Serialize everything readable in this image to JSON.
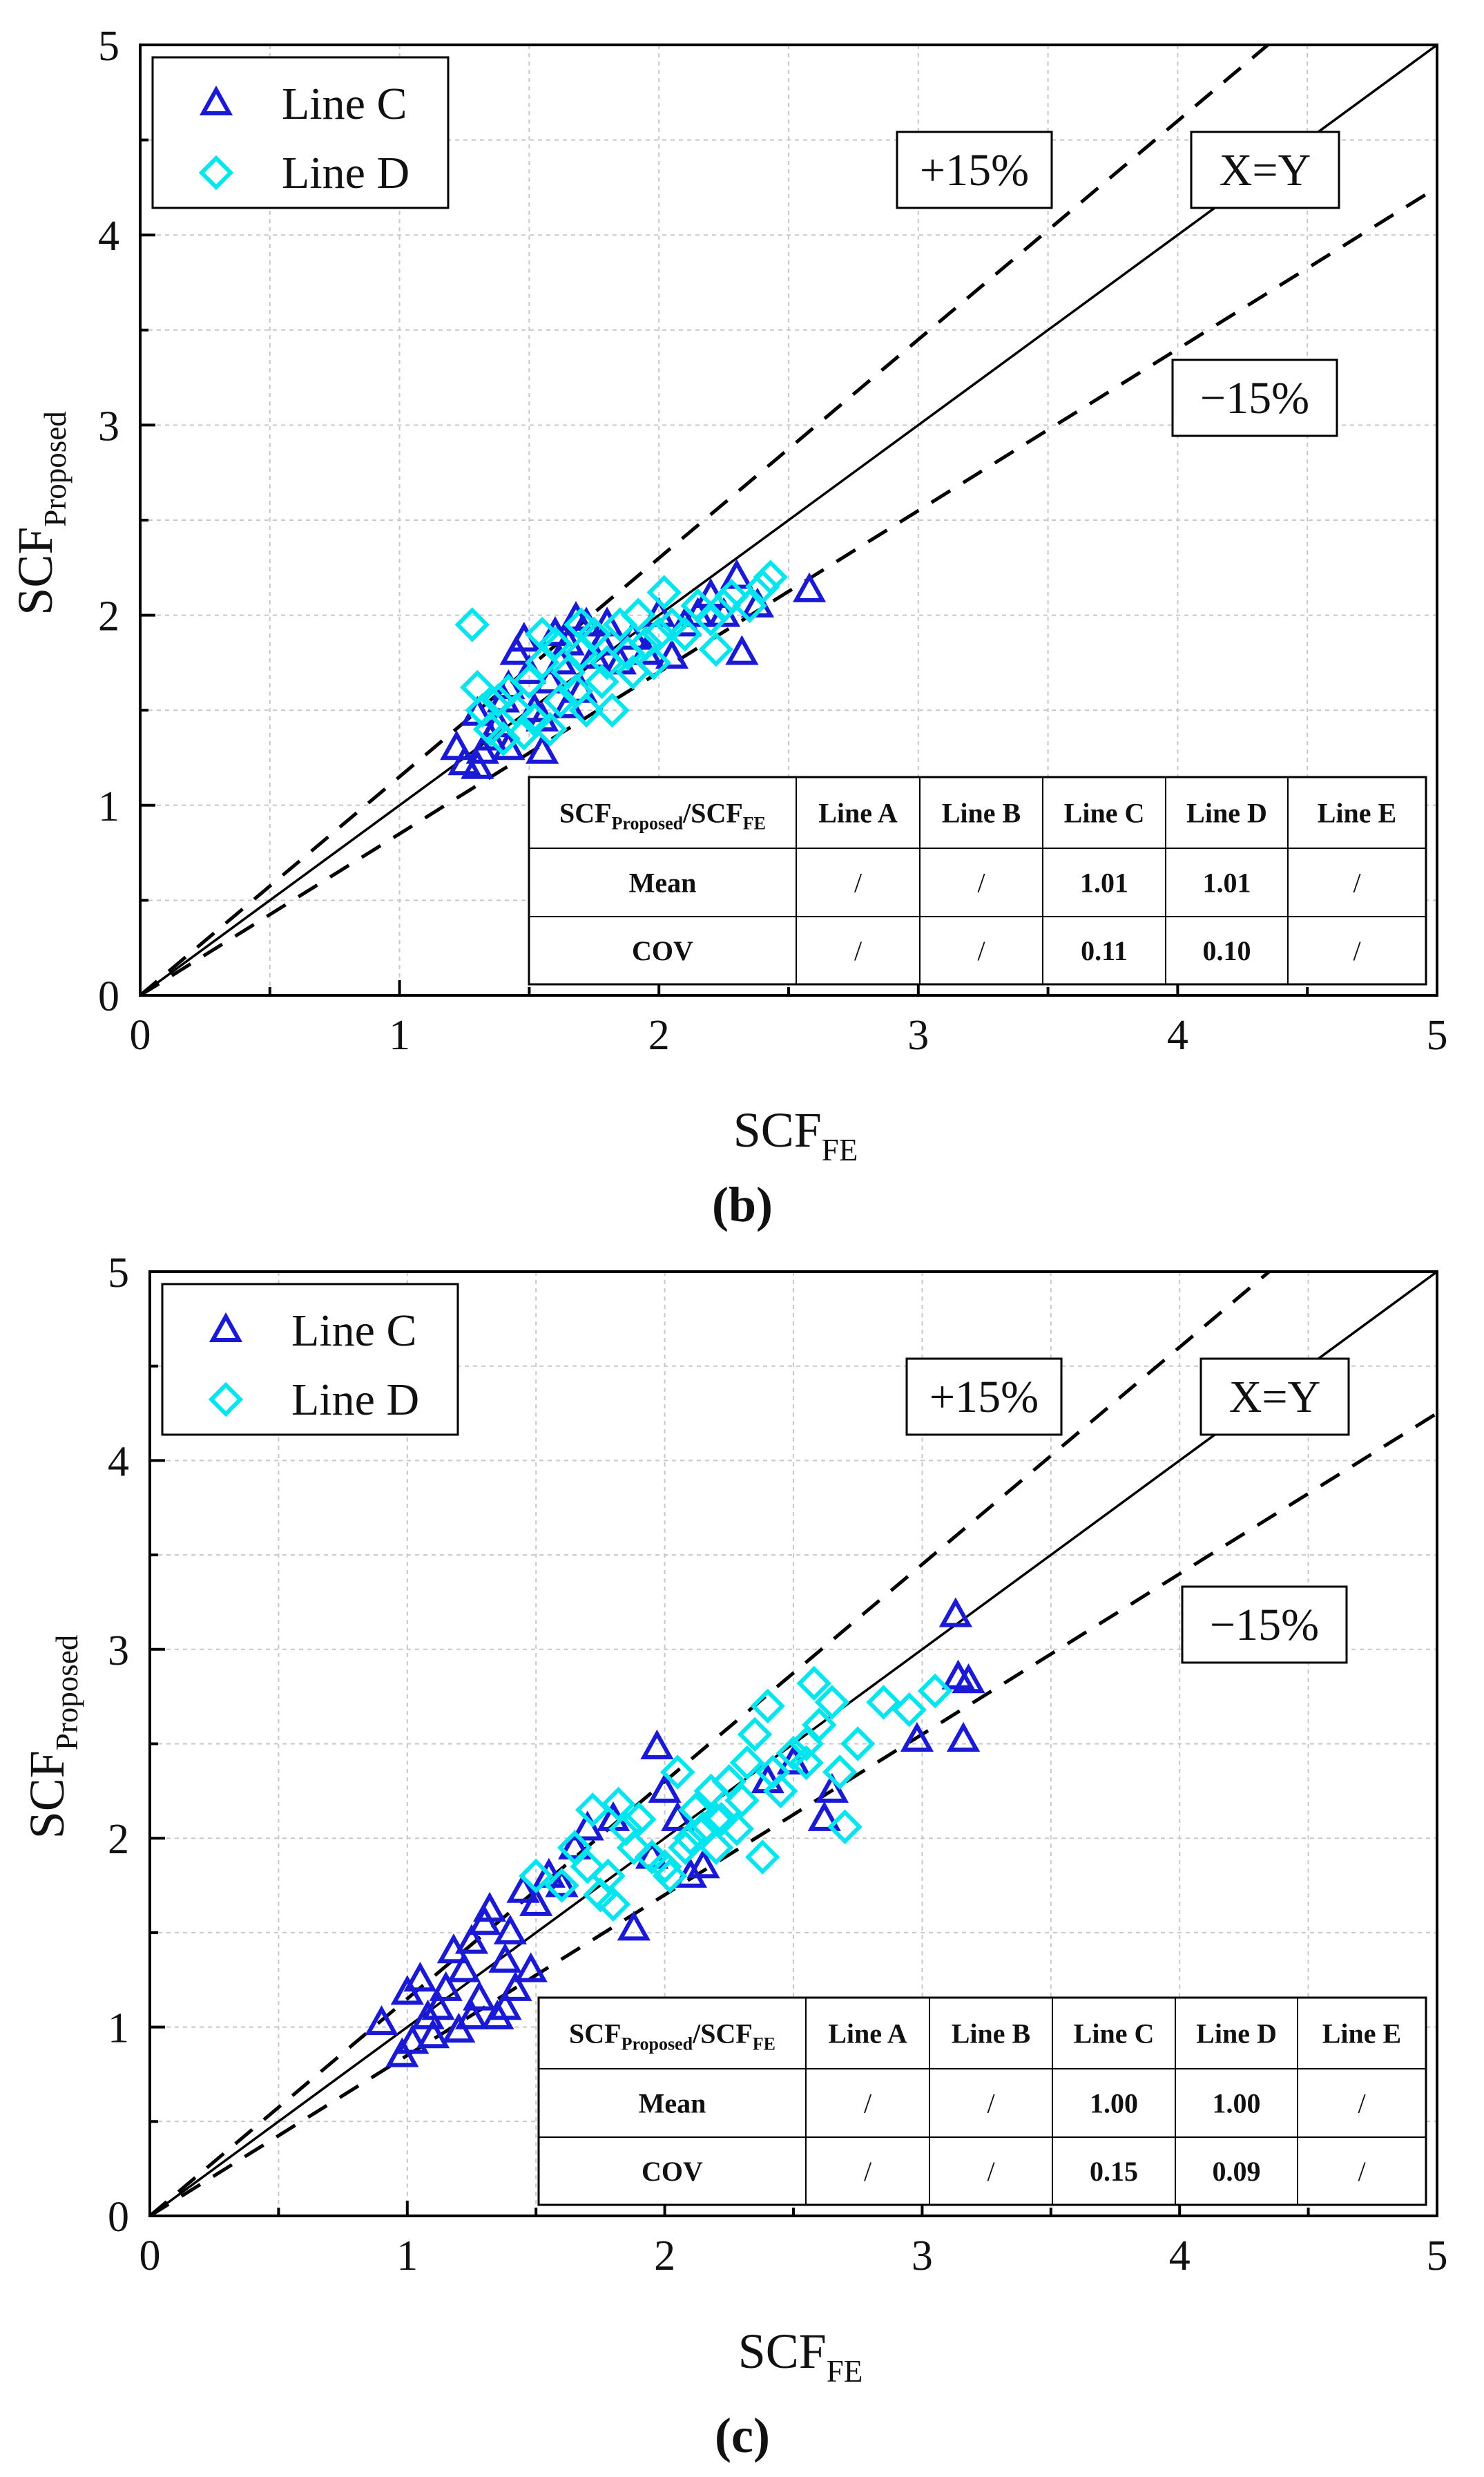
{
  "chart_data": [
    {
      "panel": "b",
      "caption": "(b)",
      "type": "scatter",
      "xlabel": "SCF",
      "xlabel_sub": "FE",
      "ylabel": "SCF",
      "ylabel_sub": "Proposed",
      "xlim": [
        0,
        5
      ],
      "ylim": [
        0,
        5
      ],
      "xticks": [
        "0",
        "1",
        "2",
        "3",
        "4",
        "5"
      ],
      "yticks": [
        "0",
        "1",
        "2",
        "3",
        "4",
        "5"
      ],
      "grid": true,
      "legend": {
        "placement": "top-left",
        "entries": [
          "Line C",
          "Line D"
        ]
      },
      "reference_lines": [
        {
          "label": "X=Y",
          "slope": 1.0,
          "style": "solid"
        },
        {
          "label": "+15%",
          "slope": 1.15,
          "style": "dashed"
        },
        {
          "label": "−15%",
          "slope": 0.85,
          "style": "dashed"
        }
      ],
      "series": [
        {
          "name": "Line C",
          "marker": "triangle",
          "color": "#1a1ad6",
          "points": [
            [
              1.22,
              1.3
            ],
            [
              1.25,
              1.22
            ],
            [
              1.3,
              1.2
            ],
            [
              1.32,
              1.28
            ],
            [
              1.35,
              1.35
            ],
            [
              1.38,
              1.42
            ],
            [
              1.4,
              1.55
            ],
            [
              1.42,
              1.62
            ],
            [
              1.45,
              1.8
            ],
            [
              1.48,
              1.87
            ],
            [
              1.5,
              1.7
            ],
            [
              1.52,
              1.5
            ],
            [
              1.55,
              1.28
            ],
            [
              1.58,
              1.65
            ],
            [
              1.6,
              1.9
            ],
            [
              1.62,
              1.75
            ],
            [
              1.65,
              1.85
            ],
            [
              1.68,
              1.98
            ],
            [
              1.7,
              1.6
            ],
            [
              1.72,
              1.95
            ],
            [
              1.75,
              1.78
            ],
            [
              1.78,
              1.85
            ],
            [
              1.8,
              1.95
            ],
            [
              1.85,
              1.75
            ],
            [
              1.9,
              1.88
            ],
            [
              1.95,
              1.8
            ],
            [
              2.0,
              2.0
            ],
            [
              2.05,
              1.78
            ],
            [
              2.1,
              1.95
            ],
            [
              2.15,
              2.0
            ],
            [
              2.2,
              2.1
            ],
            [
              2.25,
              2.0
            ],
            [
              2.3,
              2.2
            ],
            [
              2.32,
              1.8
            ],
            [
              2.38,
              2.05
            ],
            [
              2.58,
              2.13
            ],
            [
              1.3,
              1.48
            ],
            [
              1.42,
              1.3
            ],
            [
              1.55,
              1.45
            ],
            [
              1.65,
              1.52
            ]
          ]
        },
        {
          "name": "Line D",
          "marker": "diamond",
          "color": "#00e5ee",
          "points": [
            [
              1.28,
              1.95
            ],
            [
              1.3,
              1.62
            ],
            [
              1.32,
              1.5
            ],
            [
              1.35,
              1.4
            ],
            [
              1.38,
              1.55
            ],
            [
              1.4,
              1.35
            ],
            [
              1.42,
              1.6
            ],
            [
              1.45,
              1.5
            ],
            [
              1.48,
              1.38
            ],
            [
              1.5,
              1.65
            ],
            [
              1.52,
              1.45
            ],
            [
              1.55,
              1.75
            ],
            [
              1.58,
              1.4
            ],
            [
              1.6,
              1.85
            ],
            [
              1.62,
              1.55
            ],
            [
              1.65,
              1.7
            ],
            [
              1.68,
              1.6
            ],
            [
              1.7,
              1.8
            ],
            [
              1.72,
              1.5
            ],
            [
              1.75,
              1.9
            ],
            [
              1.78,
              1.65
            ],
            [
              1.8,
              1.75
            ],
            [
              1.82,
              1.5
            ],
            [
              1.85,
              1.95
            ],
            [
              1.88,
              1.8
            ],
            [
              1.9,
              1.7
            ],
            [
              1.92,
              2.0
            ],
            [
              1.95,
              1.85
            ],
            [
              1.98,
              1.75
            ],
            [
              2.0,
              1.9
            ],
            [
              2.02,
              2.12
            ],
            [
              2.05,
              1.95
            ],
            [
              2.1,
              1.9
            ],
            [
              2.15,
              2.05
            ],
            [
              2.2,
              1.98
            ],
            [
              2.22,
              1.82
            ],
            [
              2.25,
              2.05
            ],
            [
              2.28,
              2.1
            ],
            [
              2.35,
              2.05
            ],
            [
              2.4,
              2.15
            ],
            [
              2.43,
              2.2
            ],
            [
              1.7,
              1.95
            ],
            [
              1.55,
              1.9
            ]
          ]
        }
      ],
      "stats_table": {
        "header": [
          "SCF",
          "Proposed",
          "/SCF",
          "FE",
          "Line A",
          "Line B",
          "Line C",
          "Line D",
          "Line E"
        ],
        "rows": [
          [
            "Mean",
            "/",
            "/",
            "1.01",
            "1.01",
            "/"
          ],
          [
            "COV",
            "/",
            "/",
            "0.11",
            "0.10",
            "/"
          ]
        ]
      }
    },
    {
      "panel": "c",
      "caption": "(c)",
      "type": "scatter",
      "xlabel": "SCF",
      "xlabel_sub": "FE",
      "ylabel": "SCF",
      "ylabel_sub": "Proposed",
      "xlim": [
        0,
        5
      ],
      "ylim": [
        0,
        5
      ],
      "xticks": [
        "0",
        "1",
        "2",
        "3",
        "4",
        "5"
      ],
      "yticks": [
        "0",
        "1",
        "2",
        "3",
        "4",
        "5"
      ],
      "grid": true,
      "legend": {
        "placement": "top-left",
        "entries": [
          "Line C",
          "Line D"
        ]
      },
      "reference_lines": [
        {
          "label": "X=Y",
          "slope": 1.0,
          "style": "solid"
        },
        {
          "label": "+15%",
          "slope": 1.15,
          "style": "dashed"
        },
        {
          "label": "−15%",
          "slope": 0.85,
          "style": "dashed"
        }
      ],
      "series": [
        {
          "name": "Line C",
          "marker": "triangle",
          "color": "#1a1ad6",
          "points": [
            [
              0.9,
              1.02
            ],
            [
              0.98,
              0.85
            ],
            [
              1.0,
              1.18
            ],
            [
              1.02,
              0.92
            ],
            [
              1.05,
              1.25
            ],
            [
              1.08,
              1.05
            ],
            [
              1.1,
              0.95
            ],
            [
              1.12,
              1.1
            ],
            [
              1.15,
              1.2
            ],
            [
              1.18,
              1.4
            ],
            [
              1.2,
              0.98
            ],
            [
              1.22,
              1.3
            ],
            [
              1.25,
              1.45
            ],
            [
              1.28,
              1.15
            ],
            [
              1.3,
              1.55
            ],
            [
              1.32,
              1.62
            ],
            [
              1.35,
              1.05
            ],
            [
              1.38,
              1.35
            ],
            [
              1.4,
              1.5
            ],
            [
              1.42,
              1.2
            ],
            [
              1.45,
              1.72
            ],
            [
              1.48,
              1.3
            ],
            [
              1.5,
              1.65
            ],
            [
              1.55,
              1.8
            ],
            [
              1.6,
              1.75
            ],
            [
              1.65,
              1.95
            ],
            [
              1.7,
              2.05
            ],
            [
              1.8,
              2.1
            ],
            [
              1.88,
              1.52
            ],
            [
              1.95,
              1.9
            ],
            [
              1.97,
              2.48
            ],
            [
              2.0,
              2.25
            ],
            [
              2.05,
              2.1
            ],
            [
              2.1,
              1.8
            ],
            [
              2.15,
              1.85
            ],
            [
              2.4,
              2.3
            ],
            [
              2.5,
              2.4
            ],
            [
              2.62,
              2.1
            ],
            [
              2.65,
              2.25
            ],
            [
              2.98,
              2.52
            ],
            [
              3.13,
              3.18
            ],
            [
              3.14,
              2.85
            ],
            [
              3.16,
              2.52
            ],
            [
              3.18,
              2.83
            ],
            [
              1.25,
              1.05
            ],
            [
              1.38,
              1.1
            ]
          ]
        },
        {
          "name": "Line D",
          "marker": "diamond",
          "color": "#00e5ee",
          "points": [
            [
              1.5,
              1.8
            ],
            [
              1.6,
              1.75
            ],
            [
              1.65,
              1.95
            ],
            [
              1.7,
              1.85
            ],
            [
              1.72,
              2.15
            ],
            [
              1.75,
              1.7
            ],
            [
              1.78,
              1.8
            ],
            [
              1.8,
              1.65
            ],
            [
              1.82,
              2.18
            ],
            [
              1.85,
              2.05
            ],
            [
              1.88,
              1.95
            ],
            [
              1.9,
              2.1
            ],
            [
              1.95,
              1.9
            ],
            [
              2.0,
              1.85
            ],
            [
              2.02,
              1.8
            ],
            [
              2.05,
              2.35
            ],
            [
              2.08,
              1.95
            ],
            [
              2.1,
              2.0
            ],
            [
              2.12,
              2.15
            ],
            [
              2.15,
              2.05
            ],
            [
              2.18,
              2.25
            ],
            [
              2.2,
              1.95
            ],
            [
              2.22,
              2.1
            ],
            [
              2.25,
              2.3
            ],
            [
              2.28,
              2.05
            ],
            [
              2.3,
              2.2
            ],
            [
              2.32,
              2.4
            ],
            [
              2.35,
              2.55
            ],
            [
              2.38,
              1.9
            ],
            [
              2.4,
              2.7
            ],
            [
              2.42,
              2.35
            ],
            [
              2.45,
              2.25
            ],
            [
              2.5,
              2.45
            ],
            [
              2.55,
              2.5
            ],
            [
              2.58,
              2.82
            ],
            [
              2.6,
              2.6
            ],
            [
              2.65,
              2.72
            ],
            [
              2.68,
              2.35
            ],
            [
              2.7,
              2.06
            ],
            [
              2.75,
              2.5
            ],
            [
              2.85,
              2.72
            ],
            [
              2.95,
              2.68
            ],
            [
              3.05,
              2.78
            ],
            [
              2.55,
              2.4
            ],
            [
              2.2,
              2.1
            ]
          ]
        }
      ],
      "stats_table": {
        "header": [
          "SCF",
          "Proposed",
          "/SCF",
          "FE",
          "Line A",
          "Line B",
          "Line C",
          "Line D",
          "Line E"
        ],
        "rows": [
          [
            "Mean",
            "/",
            "/",
            "1.00",
            "1.00",
            "/"
          ],
          [
            "COV",
            "/",
            "/",
            "0.15",
            "0.09",
            "/"
          ]
        ]
      }
    }
  ]
}
